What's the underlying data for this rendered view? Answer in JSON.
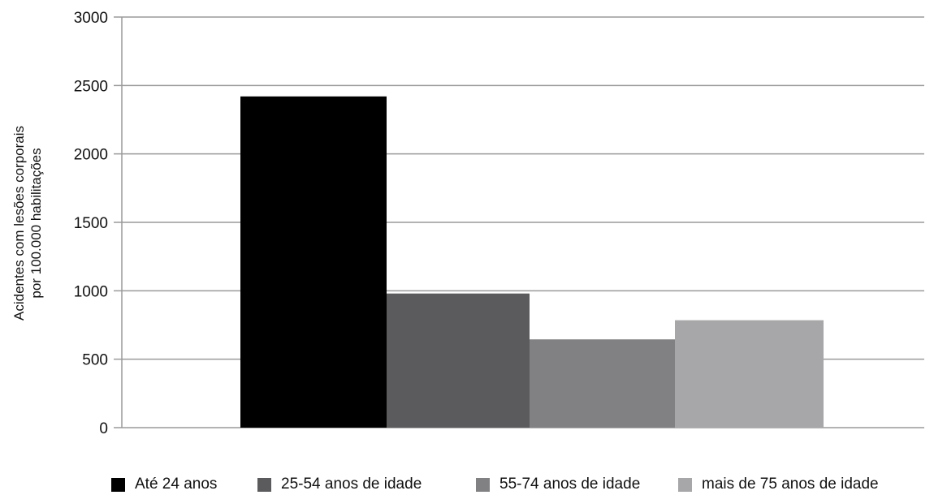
{
  "chart_data": {
    "type": "bar",
    "title": "",
    "xlabel": "",
    "ylabel_lines": [
      "Acidentes com lesões corporais",
      "por 100.000 habilitações"
    ],
    "ylim": [
      0,
      3000
    ],
    "yticks": [
      0,
      500,
      1000,
      1500,
      2000,
      2500,
      3000
    ],
    "grid": true,
    "legend_position": "bottom",
    "series": [
      {
        "name": "Até 24 anos",
        "values": [
          2420
        ],
        "color": "#000000"
      },
      {
        "name": "25-54 anos de idade",
        "values": [
          980
        ],
        "color": "#5b5b5d"
      },
      {
        "name": "55-74 anos de idade",
        "values": [
          645
        ],
        "color": "#818184"
      },
      {
        "name": "mais de 75 anos de idade",
        "values": [
          785
        ],
        "color": "#a7a7aa"
      }
    ]
  }
}
